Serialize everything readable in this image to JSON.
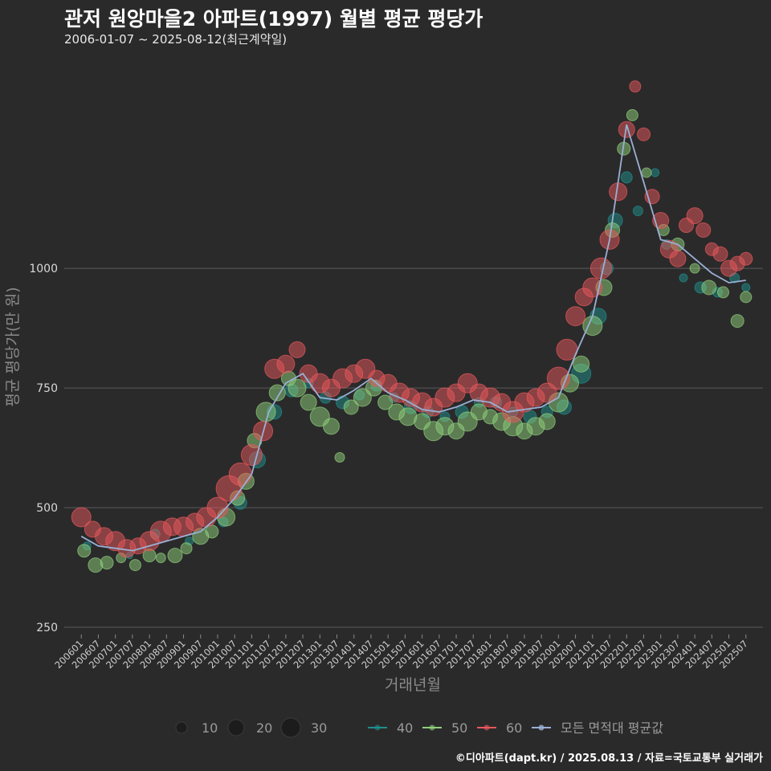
{
  "header": {
    "title": "관저 원앙마을2 아파트(1997) 월별 평균 평당가",
    "subtitle": "2006-01-07 ~ 2025-08-12(최근계약일)"
  },
  "footer": {
    "credit": "©디아파트(dapt.kr) / 2025.08.13 / 자료=국토교통부 실거래가"
  },
  "colors": {
    "background": "#2b2a2b",
    "grid": "#5a5a5a",
    "area40": "#1f8f8c",
    "area50": "#8fd07c",
    "area60": "#e8585c",
    "average": "#9ab0d4"
  },
  "chart_data": {
    "type": "scatter",
    "xlabel": "거래년월",
    "ylabel": "평균 평당가(만 원)",
    "ylim": [
      235,
      1460
    ],
    "yticks": [
      250,
      500,
      750,
      1000
    ],
    "xlim": [
      "2005-07",
      "2026-01"
    ],
    "xticks": [
      "200601",
      "200607",
      "200701",
      "200707",
      "200801",
      "200807",
      "200901",
      "200907",
      "201001",
      "201007",
      "201101",
      "201107",
      "201201",
      "201207",
      "201301",
      "201307",
      "201401",
      "201407",
      "201501",
      "201507",
      "201601",
      "201607",
      "201701",
      "201707",
      "201801",
      "201807",
      "201901",
      "201907",
      "202001",
      "202007",
      "202101",
      "202107",
      "202201",
      "202207",
      "202301",
      "202307",
      "202401",
      "202407",
      "202501",
      "202507"
    ],
    "grid": "horizontal",
    "legend_position": "bottom",
    "size_legend": [
      10,
      20,
      30
    ],
    "series": [
      {
        "name": "40",
        "color": "#1f8f8c",
        "kind": "bubble",
        "points": [
          [
            "2006-03",
            420,
            5
          ],
          [
            "2007-06",
            400,
            4
          ],
          [
            "2008-03",
            445,
            6
          ],
          [
            "2009-03",
            430,
            5
          ],
          [
            "2010-03",
            470,
            6
          ],
          [
            "2010-09",
            510,
            8
          ],
          [
            "2011-03",
            600,
            10
          ],
          [
            "2011-09",
            700,
            9
          ],
          [
            "2012-03",
            745,
            8
          ],
          [
            "2012-09",
            760,
            6
          ],
          [
            "2013-03",
            730,
            7
          ],
          [
            "2013-09",
            720,
            8
          ],
          [
            "2014-03",
            735,
            6
          ],
          [
            "2014-09",
            755,
            7
          ],
          [
            "2015-03",
            730,
            6
          ],
          [
            "2015-09",
            710,
            8
          ],
          [
            "2016-03",
            700,
            7
          ],
          [
            "2016-09",
            690,
            6
          ],
          [
            "2017-03",
            700,
            8
          ],
          [
            "2017-09",
            720,
            6
          ],
          [
            "2018-03",
            720,
            7
          ],
          [
            "2018-09",
            700,
            6
          ],
          [
            "2019-03",
            690,
            8
          ],
          [
            "2019-09",
            700,
            7
          ],
          [
            "2020-03",
            710,
            9
          ],
          [
            "2020-09",
            780,
            12
          ],
          [
            "2021-03",
            900,
            10
          ],
          [
            "2021-06",
            1000,
            8
          ],
          [
            "2021-09",
            1100,
            9
          ],
          [
            "2022-01",
            1190,
            7
          ],
          [
            "2022-05",
            1120,
            6
          ],
          [
            "2022-11",
            1200,
            5
          ],
          [
            "2023-03",
            1050,
            6
          ],
          [
            "2023-09",
            980,
            5
          ],
          [
            "2024-03",
            960,
            7
          ],
          [
            "2024-09",
            950,
            6
          ],
          [
            "2025-03",
            980,
            6
          ],
          [
            "2025-07",
            960,
            5
          ]
        ]
      },
      {
        "name": "50",
        "color": "#8fd07c",
        "kind": "bubble",
        "points": [
          [
            "2006-02",
            410,
            8
          ],
          [
            "2006-06",
            380,
            9
          ],
          [
            "2006-10",
            385,
            8
          ],
          [
            "2007-03",
            395,
            6
          ],
          [
            "2007-08",
            380,
            7
          ],
          [
            "2008-01",
            400,
            8
          ],
          [
            "2008-05",
            395,
            6
          ],
          [
            "2008-10",
            400,
            9
          ],
          [
            "2009-02",
            415,
            7
          ],
          [
            "2009-07",
            440,
            10
          ],
          [
            "2009-11",
            450,
            8
          ],
          [
            "2010-04",
            480,
            11
          ],
          [
            "2010-08",
            520,
            9
          ],
          [
            "2010-11",
            555,
            10
          ],
          [
            "2011-02",
            640,
            9
          ],
          [
            "2011-06",
            700,
            12
          ],
          [
            "2011-10",
            740,
            10
          ],
          [
            "2012-02",
            770,
            9
          ],
          [
            "2012-05",
            750,
            11
          ],
          [
            "2012-09",
            720,
            10
          ],
          [
            "2013-01",
            690,
            12
          ],
          [
            "2013-05",
            670,
            10
          ],
          [
            "2013-08",
            605,
            6
          ],
          [
            "2013-12",
            710,
            9
          ],
          [
            "2014-04",
            730,
            11
          ],
          [
            "2014-08",
            750,
            10
          ],
          [
            "2014-12",
            720,
            9
          ],
          [
            "2015-04",
            700,
            10
          ],
          [
            "2015-08",
            690,
            11
          ],
          [
            "2016-01",
            680,
            10
          ],
          [
            "2016-05",
            660,
            12
          ],
          [
            "2016-09",
            670,
            11
          ],
          [
            "2017-01",
            660,
            10
          ],
          [
            "2017-05",
            680,
            12
          ],
          [
            "2017-09",
            700,
            10
          ],
          [
            "2018-01",
            690,
            9
          ],
          [
            "2018-05",
            680,
            11
          ],
          [
            "2018-09",
            670,
            12
          ],
          [
            "2019-01",
            660,
            10
          ],
          [
            "2019-05",
            670,
            11
          ],
          [
            "2019-09",
            680,
            10
          ],
          [
            "2020-01",
            720,
            12
          ],
          [
            "2020-05",
            760,
            11
          ],
          [
            "2020-09",
            800,
            10
          ],
          [
            "2021-01",
            880,
            12
          ],
          [
            "2021-05",
            960,
            10
          ],
          [
            "2021-08",
            1080,
            9
          ],
          [
            "2021-12",
            1250,
            8
          ],
          [
            "2022-03",
            1320,
            7
          ],
          [
            "2022-08",
            1200,
            6
          ],
          [
            "2023-02",
            1080,
            7
          ],
          [
            "2023-07",
            1050,
            8
          ],
          [
            "2024-01",
            1000,
            6
          ],
          [
            "2024-06",
            960,
            9
          ],
          [
            "2024-11",
            950,
            7
          ],
          [
            "2025-04",
            890,
            8
          ],
          [
            "2025-07",
            940,
            7
          ]
        ]
      },
      {
        "name": "60",
        "color": "#e8585c",
        "kind": "bubble",
        "points": [
          [
            "2006-01",
            480,
            12
          ],
          [
            "2006-05",
            455,
            10
          ],
          [
            "2006-09",
            440,
            11
          ],
          [
            "2007-01",
            430,
            12
          ],
          [
            "2007-05",
            415,
            11
          ],
          [
            "2007-09",
            420,
            10
          ],
          [
            "2008-01",
            430,
            12
          ],
          [
            "2008-05",
            450,
            13
          ],
          [
            "2008-09",
            460,
            11
          ],
          [
            "2009-01",
            460,
            12
          ],
          [
            "2009-05",
            470,
            11
          ],
          [
            "2009-09",
            480,
            12
          ],
          [
            "2010-01",
            500,
            13
          ],
          [
            "2010-05",
            540,
            16
          ],
          [
            "2010-09",
            570,
            14
          ],
          [
            "2011-01",
            610,
            13
          ],
          [
            "2011-05",
            660,
            12
          ],
          [
            "2011-09",
            790,
            12
          ],
          [
            "2012-01",
            800,
            11
          ],
          [
            "2012-05",
            830,
            10
          ],
          [
            "2012-09",
            780,
            11
          ],
          [
            "2013-01",
            760,
            12
          ],
          [
            "2013-05",
            750,
            11
          ],
          [
            "2013-09",
            770,
            12
          ],
          [
            "2014-01",
            780,
            11
          ],
          [
            "2014-05",
            790,
            12
          ],
          [
            "2014-09",
            770,
            10
          ],
          [
            "2015-01",
            760,
            11
          ],
          [
            "2015-05",
            740,
            12
          ],
          [
            "2015-09",
            730,
            11
          ],
          [
            "2016-01",
            720,
            12
          ],
          [
            "2016-05",
            710,
            11
          ],
          [
            "2016-09",
            730,
            12
          ],
          [
            "2017-01",
            740,
            11
          ],
          [
            "2017-05",
            760,
            12
          ],
          [
            "2017-09",
            740,
            11
          ],
          [
            "2018-01",
            730,
            12
          ],
          [
            "2018-05",
            720,
            11
          ],
          [
            "2018-09",
            700,
            13
          ],
          [
            "2019-01",
            720,
            12
          ],
          [
            "2019-05",
            730,
            11
          ],
          [
            "2019-09",
            740,
            12
          ],
          [
            "2020-01",
            770,
            14
          ],
          [
            "2020-04",
            830,
            13
          ],
          [
            "2020-07",
            900,
            12
          ],
          [
            "2020-10",
            940,
            11
          ],
          [
            "2021-01",
            960,
            12
          ],
          [
            "2021-04",
            1000,
            13
          ],
          [
            "2021-07",
            1060,
            12
          ],
          [
            "2021-10",
            1160,
            11
          ],
          [
            "2022-01",
            1290,
            10
          ],
          [
            "2022-04",
            1380,
            7
          ],
          [
            "2022-07",
            1280,
            8
          ],
          [
            "2022-10",
            1150,
            9
          ],
          [
            "2023-01",
            1100,
            10
          ],
          [
            "2023-04",
            1040,
            11
          ],
          [
            "2023-07",
            1020,
            10
          ],
          [
            "2023-10",
            1090,
            9
          ],
          [
            "2024-01",
            1110,
            10
          ],
          [
            "2024-04",
            1080,
            9
          ],
          [
            "2024-07",
            1040,
            8
          ],
          [
            "2024-10",
            1030,
            9
          ],
          [
            "2025-01",
            1000,
            10
          ],
          [
            "2025-04",
            1010,
            9
          ],
          [
            "2025-07",
            1020,
            8
          ]
        ]
      },
      {
        "name": "모든 면적대 평균값",
        "color": "#9ab0d4",
        "kind": "line",
        "points": [
          [
            "2006-01",
            440
          ],
          [
            "2006-07",
            420
          ],
          [
            "2007-01",
            415
          ],
          [
            "2007-07",
            410
          ],
          [
            "2008-01",
            420
          ],
          [
            "2008-07",
            430
          ],
          [
            "2009-01",
            440
          ],
          [
            "2009-07",
            450
          ],
          [
            "2010-01",
            480
          ],
          [
            "2010-07",
            520
          ],
          [
            "2011-01",
            570
          ],
          [
            "2011-07",
            700
          ],
          [
            "2012-01",
            760
          ],
          [
            "2012-07",
            780
          ],
          [
            "2013-01",
            730
          ],
          [
            "2013-07",
            725
          ],
          [
            "2014-01",
            745
          ],
          [
            "2014-07",
            770
          ],
          [
            "2015-01",
            740
          ],
          [
            "2015-07",
            725
          ],
          [
            "2016-01",
            705
          ],
          [
            "2016-07",
            700
          ],
          [
            "2017-01",
            710
          ],
          [
            "2017-07",
            725
          ],
          [
            "2018-01",
            720
          ],
          [
            "2018-07",
            700
          ],
          [
            "2019-01",
            705
          ],
          [
            "2019-07",
            710
          ],
          [
            "2020-01",
            730
          ],
          [
            "2020-07",
            820
          ],
          [
            "2021-01",
            900
          ],
          [
            "2021-07",
            1060
          ],
          [
            "2022-01",
            1300
          ],
          [
            "2022-07",
            1180
          ],
          [
            "2023-01",
            1060
          ],
          [
            "2023-07",
            1050
          ],
          [
            "2024-01",
            1020
          ],
          [
            "2024-07",
            990
          ],
          [
            "2025-01",
            970
          ],
          [
            "2025-07",
            975
          ]
        ]
      }
    ]
  }
}
